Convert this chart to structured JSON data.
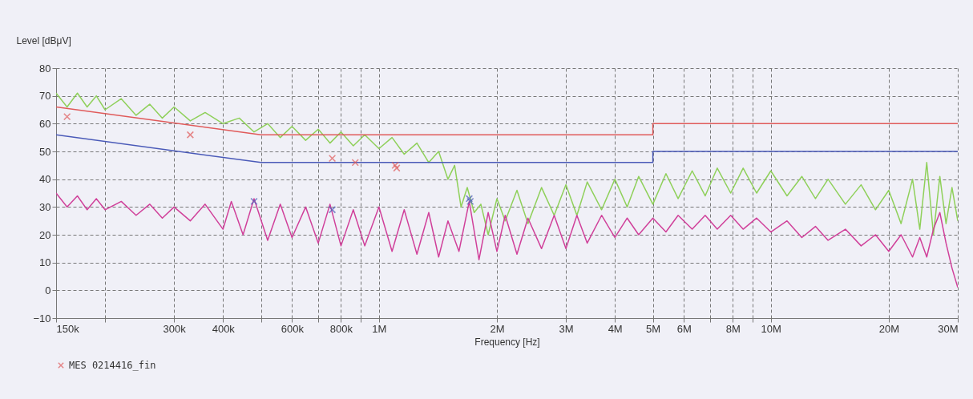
{
  "chart_data": {
    "type": "line",
    "xlabel": "Frequency [Hz]",
    "ylabel": "Level [dBμV]",
    "log": "x",
    "grid": true,
    "legend": "bottom",
    "line_style": "solid",
    "xlim": [
      150000,
      30000000
    ],
    "ylim": [
      -10,
      80
    ],
    "yticks": [
      -10,
      0,
      10,
      20,
      30,
      40,
      50,
      60,
      70,
      80
    ],
    "xticks": [
      {
        "value": 150000,
        "label": "150k"
      },
      {
        "value": 200000,
        "label": null
      },
      {
        "value": 300000,
        "label": "300k"
      },
      {
        "value": 400000,
        "label": "400k"
      },
      {
        "value": 500000,
        "label": null
      },
      {
        "value": 600000,
        "label": "600k"
      },
      {
        "value": 700000,
        "label": null
      },
      {
        "value": 800000,
        "label": "800k"
      },
      {
        "value": 900000,
        "label": null
      },
      {
        "value": 1000000,
        "label": "1M"
      },
      {
        "value": 2000000,
        "label": "2M"
      },
      {
        "value": 3000000,
        "label": "3M"
      },
      {
        "value": 4000000,
        "label": "4M"
      },
      {
        "value": 5000000,
        "label": "5M"
      },
      {
        "value": 6000000,
        "label": "6M"
      },
      {
        "value": 7000000,
        "label": null
      },
      {
        "value": 8000000,
        "label": "8M"
      },
      {
        "value": 9000000,
        "label": null
      },
      {
        "value": 10000000,
        "label": "10M"
      },
      {
        "value": 20000000,
        "label": "20M"
      },
      {
        "value": 30000000,
        "label": "30M"
      }
    ],
    "series": [
      {
        "color": "#8fd05a",
        "x": [
          150000,
          160000,
          170000,
          180000,
          190000,
          200000,
          220000,
          240000,
          260000,
          280000,
          300000,
          330000,
          360000,
          400000,
          440000,
          480000,
          520000,
          560000,
          600000,
          650000,
          700000,
          750000,
          800000,
          860000,
          920000,
          1000000,
          1080000,
          1160000,
          1250000,
          1340000,
          1420000,
          1500000,
          1560000,
          1620000,
          1680000,
          1750000,
          1820000,
          1900000,
          2000000,
          2100000,
          2250000,
          2400000,
          2600000,
          2800000,
          3000000,
          3200000,
          3400000,
          3700000,
          4000000,
          4300000,
          4600000,
          5000000,
          5400000,
          5800000,
          6300000,
          6800000,
          7300000,
          7900000,
          8500000,
          9200000,
          10000000,
          11000000,
          12000000,
          13000000,
          14000000,
          15500000,
          17000000,
          18500000,
          20000000,
          21500000,
          23000000,
          24000000,
          25000000,
          26000000,
          27000000,
          28000000,
          29000000,
          30000000
        ],
        "values": [
          71,
          66,
          71,
          66,
          70,
          65,
          69,
          63,
          67,
          62,
          66,
          61,
          64,
          60,
          62,
          57,
          60,
          55,
          59,
          54,
          58,
          53,
          57,
          52,
          56,
          51,
          55,
          49,
          53,
          46,
          50,
          40,
          45,
          30,
          37,
          28,
          31,
          20,
          33,
          25,
          36,
          24,
          37,
          27,
          38,
          27,
          39,
          29,
          40,
          30,
          41,
          31,
          42,
          33,
          43,
          34,
          44,
          35,
          44,
          35,
          43,
          34,
          41,
          33,
          40,
          31,
          38,
          29,
          36,
          24,
          40,
          22,
          46,
          20,
          41,
          24,
          37,
          25
        ]
      },
      {
        "color": "#d0409a",
        "x": [
          150000,
          160000,
          170000,
          180000,
          190000,
          200000,
          220000,
          240000,
          260000,
          280000,
          300000,
          330000,
          360000,
          400000,
          420000,
          450000,
          480000,
          520000,
          560000,
          600000,
          650000,
          700000,
          750000,
          800000,
          860000,
          920000,
          1000000,
          1080000,
          1160000,
          1250000,
          1340000,
          1420000,
          1500000,
          1600000,
          1700000,
          1800000,
          1900000,
          2000000,
          2100000,
          2250000,
          2400000,
          2600000,
          2800000,
          3000000,
          3200000,
          3400000,
          3700000,
          4000000,
          4300000,
          4600000,
          5000000,
          5400000,
          5800000,
          6300000,
          6800000,
          7300000,
          7900000,
          8500000,
          9200000,
          10000000,
          11000000,
          12000000,
          13000000,
          14000000,
          15500000,
          17000000,
          18500000,
          20000000,
          21500000,
          23000000,
          24000000,
          25000000,
          26000000,
          27000000,
          28000000,
          29000000,
          30000000
        ],
        "values": [
          35,
          30,
          34,
          29,
          33,
          29,
          32,
          27,
          31,
          26,
          30,
          25,
          31,
          22,
          32,
          20,
          33,
          18,
          31,
          19,
          30,
          17,
          31,
          16,
          29,
          16,
          30,
          14,
          29,
          13,
          28,
          12,
          25,
          14,
          32,
          11,
          28,
          14,
          27,
          13,
          26,
          15,
          27,
          15,
          27,
          17,
          27,
          19,
          26,
          20,
          26,
          21,
          27,
          22,
          27,
          22,
          27,
          22,
          26,
          21,
          25,
          19,
          23,
          18,
          22,
          16,
          20,
          14,
          20,
          12,
          19,
          12,
          22,
          28,
          17,
          8,
          1
        ]
      },
      {
        "color": "#e05a5a",
        "x": [
          150000,
          500000,
          5000000,
          5000000,
          30000000
        ],
        "values": [
          66,
          56,
          56,
          60,
          60
        ]
      },
      {
        "color": "#4a5ab8",
        "x": [
          150000,
          500000,
          5000000,
          5000000,
          30000000
        ],
        "values": [
          56,
          46,
          46,
          50,
          50
        ]
      },
      {
        "type": "scatter",
        "name": "MES 0214416_fin",
        "color": "#e05a5a",
        "marker": "cross",
        "x": [
          160000,
          330000,
          760000,
          870000,
          1100000,
          1110000
        ],
        "values": [
          62.5,
          56,
          47.5,
          46,
          45,
          44
        ]
      },
      {
        "type": "scatter",
        "color": "#4a5ab8",
        "marker": "cross",
        "x": [
          480000,
          760000,
          1700000,
          1710000
        ],
        "values": [
          32,
          29,
          33,
          32
        ]
      }
    ]
  }
}
